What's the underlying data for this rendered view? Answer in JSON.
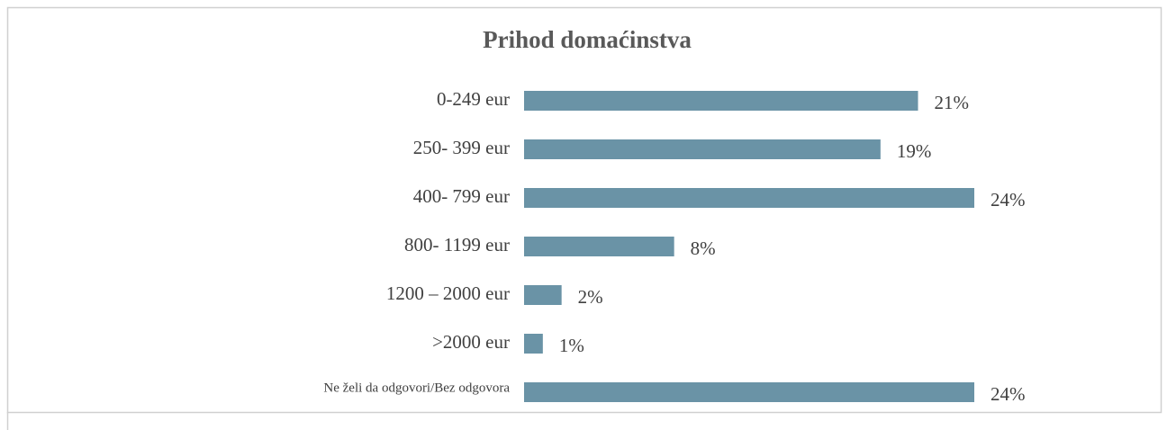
{
  "chart_data": {
    "type": "bar",
    "orientation": "horizontal",
    "title": "Prihod domaćinstva",
    "categories": [
      "0-249 eur",
      "250- 399 eur",
      "400- 799 eur",
      "800- 1199 eur",
      "1200 – 2000 eur",
      ">2000 eur",
      "Ne želi da odgovori/Bez odgovora"
    ],
    "values": [
      21,
      19,
      24,
      8,
      2,
      1,
      24
    ],
    "value_labels": [
      "21%",
      "19%",
      "24%",
      "8%",
      "2%",
      "1%",
      "24%"
    ],
    "color": "#6a93a6"
  }
}
